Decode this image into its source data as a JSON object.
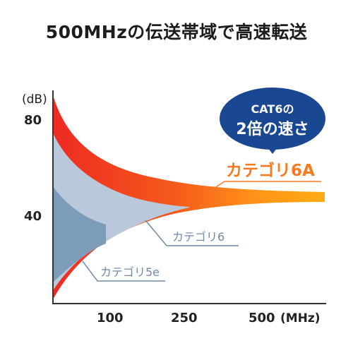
{
  "title": "500MHzの伝送帯域で高速転送",
  "chart_data": {
    "type": "area",
    "ylabel": "(dB)",
    "yticks": [
      80,
      40
    ],
    "xticks": [
      "100",
      "250",
      "500"
    ],
    "xunit": "(MHz)",
    "series": [
      {
        "name": "カテゴリ6A",
        "bandwidth_mhz": 500,
        "color": "#f03a25"
      },
      {
        "name": "カテゴリ6",
        "bandwidth_mhz": 250,
        "color": "#b7c8da"
      },
      {
        "name": "カテゴリ5e",
        "bandwidth_mhz": 100,
        "color": "#7c9cbb"
      }
    ],
    "callout": {
      "line1": "CAT6の",
      "line2": "2倍の速さ",
      "color": "#1a4791"
    },
    "colors": {
      "orange": "#ff9a14",
      "axis": "#333333",
      "label_grey": "#6f8aa7"
    }
  }
}
